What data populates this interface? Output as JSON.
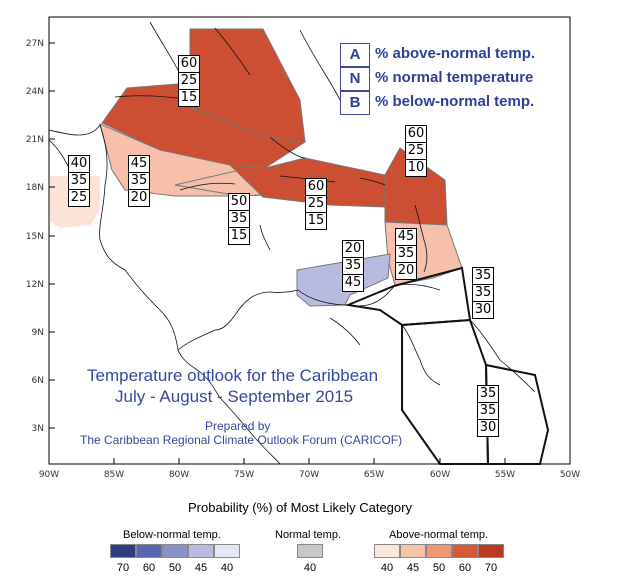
{
  "map": {
    "lat_ticks": [
      "27N",
      "24N",
      "21N",
      "18N",
      "15N",
      "12N",
      "9N",
      "6N",
      "3N"
    ],
    "lon_ticks": [
      "90W",
      "85W",
      "80W",
      "75W",
      "70W",
      "65W",
      "60W",
      "55W",
      "50W"
    ],
    "colors": {
      "above_70": "#c8452b",
      "above_45": "#f6c0aa",
      "above_40": "#fbe3d8",
      "below_45": "#b8bbe0",
      "land": "#000000",
      "border": "#000000"
    }
  },
  "key": {
    "items": [
      {
        "letter": "A",
        "text": "% above-normal temp."
      },
      {
        "letter": "N",
        "text": "% normal temperature"
      },
      {
        "letter": "B",
        "text": "% below-normal temp."
      }
    ]
  },
  "regions": [
    {
      "id": "bahamas",
      "values": [
        "60",
        "25",
        "15"
      ]
    },
    {
      "id": "belize",
      "values": [
        "40",
        "35",
        "25"
      ]
    },
    {
      "id": "cayman",
      "values": [
        "45",
        "35",
        "20"
      ]
    },
    {
      "id": "jamaica",
      "values": [
        "50",
        "35",
        "15"
      ]
    },
    {
      "id": "hispaniola",
      "values": [
        "60",
        "25",
        "15"
      ]
    },
    {
      "id": "leewards",
      "values": [
        "60",
        "25",
        "10"
      ]
    },
    {
      "id": "windwards",
      "values": [
        "45",
        "35",
        "20"
      ]
    },
    {
      "id": "abc",
      "values": [
        "20",
        "35",
        "45"
      ]
    },
    {
      "id": "trinidad",
      "values": [
        "35",
        "35",
        "30"
      ]
    },
    {
      "id": "guianas",
      "values": [
        "35",
        "35",
        "30"
      ]
    }
  ],
  "titles": {
    "main_line1": "Temperature outlook for the Caribbean",
    "main_line2": "July - August - September 2015",
    "prepared": "Prepared by",
    "forum": "The Caribbean Regional Climate Outlook Forum (CARICOF)"
  },
  "colorbar": {
    "caption": "Probability (%) of Most Likely Category",
    "below": {
      "title": "Below-normal temp.",
      "labels": [
        "70",
        "60",
        "50",
        "45",
        "40"
      ],
      "colors": [
        "#2f3c83",
        "#5865b0",
        "#8a91c7",
        "#b9bce0",
        "#e6e7f4"
      ]
    },
    "normal": {
      "title": "Normal temp.",
      "labels": [
        "40"
      ],
      "colors": [
        "#c8c8c8"
      ]
    },
    "above": {
      "title": "Above-normal temp.",
      "labels": [
        "40",
        "45",
        "50",
        "60",
        "70"
      ],
      "colors": [
        "#fbe6dc",
        "#f7c3ab",
        "#ef9674",
        "#d8583a",
        "#b83a22"
      ]
    }
  }
}
